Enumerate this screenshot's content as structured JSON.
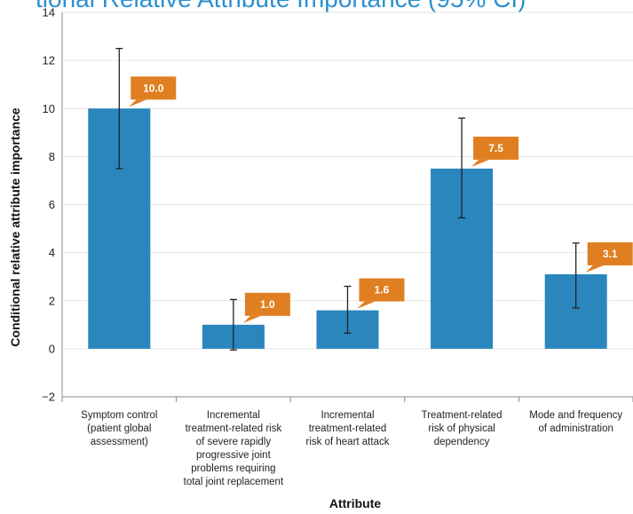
{
  "header": {
    "text": "tional Relative Attribute Importance (95% CI)"
  },
  "chart_data": {
    "type": "bar",
    "ylabel": "Conditional relative attribute importance",
    "xlabel": "Attribute",
    "ylim": [
      -2,
      14
    ],
    "yticks": [
      "−2",
      "0",
      "2",
      "4",
      "6",
      "8",
      "10",
      "12",
      "14"
    ],
    "ytick_values": [
      -2,
      0,
      2,
      4,
      6,
      8,
      10,
      12,
      14
    ],
    "grid": true,
    "categories": [
      [
        "Symptom control",
        "(patient global",
        "assessment)"
      ],
      [
        "Incremental",
        "treatment-related risk",
        "of severe rapidly",
        "progressive joint",
        "problems requiring",
        "total joint replacement"
      ],
      [
        "Incremental",
        "treatment-related",
        "risk of heart attack"
      ],
      [
        "Treatment-related",
        "risk of physical",
        "dependency"
      ],
      [
        "Mode and frequency",
        "of administration"
      ]
    ],
    "values": [
      10.0,
      1.0,
      1.6,
      7.5,
      3.1
    ],
    "value_labels": [
      "10.0",
      "1.0",
      "1.6",
      "7.5",
      "3.1"
    ],
    "ci_low": [
      7.5,
      -0.05,
      0.65,
      5.45,
      1.7
    ],
    "ci_high": [
      12.5,
      2.05,
      2.6,
      9.6,
      4.4
    ],
    "colors": {
      "bar": "#2a86bd",
      "label_box": "#e07f22",
      "grid": "#e6e6e6",
      "axis": "#888888",
      "error_bar": "#222222"
    }
  }
}
